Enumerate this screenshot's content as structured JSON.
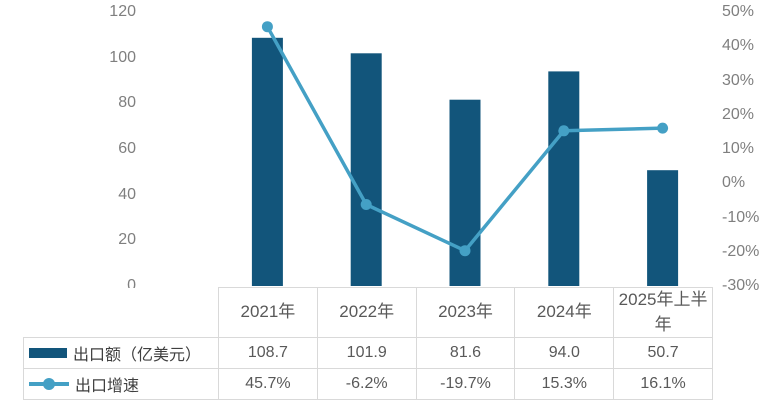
{
  "chart_data": {
    "type": "bar+line",
    "categories": [
      "2021年",
      "2022年",
      "2023年",
      "2024年",
      "2025年上半年"
    ],
    "series": [
      {
        "name": "出口额（亿美元）",
        "type": "bar",
        "axis": "left",
        "values": [
          108.7,
          101.9,
          81.6,
          94.0,
          50.7
        ],
        "display": [
          "108.7",
          "101.9",
          "81.6",
          "94.0",
          "50.7"
        ],
        "color": "#12557B"
      },
      {
        "name": "出口增速",
        "type": "line",
        "axis": "right",
        "values": [
          45.7,
          -6.2,
          -19.7,
          15.3,
          16.1
        ],
        "display": [
          "45.7%",
          "-6.2%",
          "-19.7%",
          "15.3%",
          "16.1%"
        ],
        "color": "#44A0C5"
      }
    ],
    "left_axis": {
      "min": 0,
      "max": 120,
      "tick_step": 20,
      "tick_labels": [
        "120",
        "100",
        "80",
        "60",
        "40",
        "20",
        "0"
      ]
    },
    "right_axis": {
      "min": -30,
      "max": 50,
      "tick_step": 10,
      "tick_labels": [
        "50%",
        "40%",
        "30%",
        "20%",
        "10%",
        "0%",
        "-10%",
        "-20%",
        "-30%"
      ]
    },
    "grid": false,
    "title": "",
    "legend_position": "table-left"
  },
  "colors": {
    "bar": "#12557B",
    "line": "#44A0C5",
    "axis_text": "#7F7F7F",
    "table_text": "#595959",
    "legend_text": "#3F3F3F",
    "table_border": "#D9D9D9",
    "background": "#FFFFFF"
  }
}
